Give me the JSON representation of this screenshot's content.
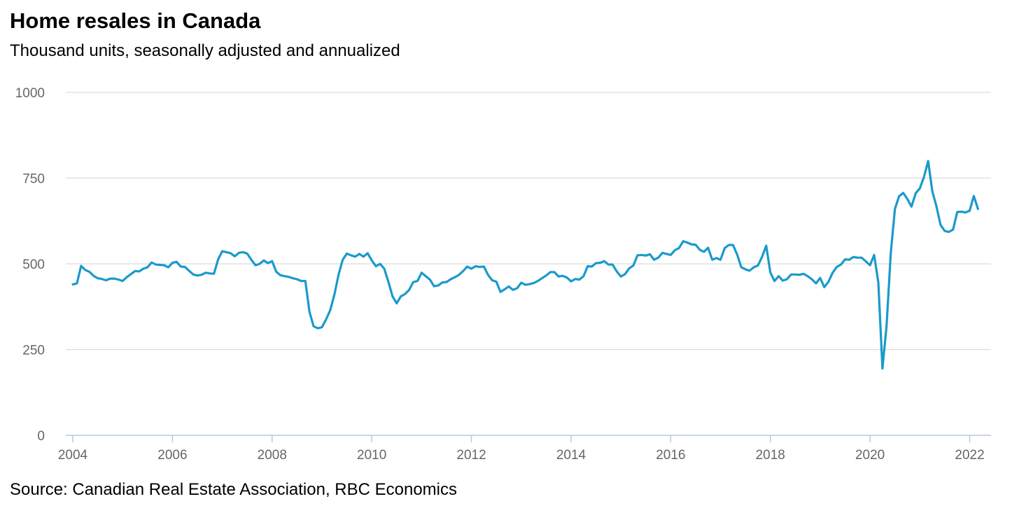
{
  "chart_data": {
    "type": "line",
    "title": "Home resales in Canada",
    "subtitle": "Thousand units, seasonally adjusted and annualized",
    "source": "Source: Canadian Real Estate Association, RBC Economics",
    "xlabel": "",
    "ylabel": "",
    "xlim": [
      2004,
      2022.4
    ],
    "ylim": [
      0,
      1000
    ],
    "y_ticks": [
      0,
      250,
      500,
      750,
      1000
    ],
    "x_ticks": [
      2004,
      2006,
      2008,
      2010,
      2012,
      2014,
      2016,
      2018,
      2020,
      2022
    ],
    "grid": true,
    "legend": "none",
    "line_color": "#1a9acb",
    "series": [
      {
        "x": [
          2004.0,
          2004.083,
          2004.167,
          2004.25,
          2004.333,
          2004.417,
          2004.5,
          2004.583,
          2004.667,
          2004.75,
          2004.833,
          2004.917,
          2005.0,
          2005.083,
          2005.167,
          2005.25,
          2005.333,
          2005.417,
          2005.5,
          2005.583,
          2005.667,
          2005.75,
          2005.833,
          2005.917,
          2006.0,
          2006.083,
          2006.167,
          2006.25,
          2006.333,
          2006.417,
          2006.5,
          2006.583,
          2006.667,
          2006.75,
          2006.833,
          2006.917,
          2007.0,
          2007.083,
          2007.167,
          2007.25,
          2007.333,
          2007.417,
          2007.5,
          2007.583,
          2007.667,
          2007.75,
          2007.833,
          2007.917,
          2008.0,
          2008.083,
          2008.167,
          2008.25,
          2008.333,
          2008.417,
          2008.5,
          2008.583,
          2008.667,
          2008.75,
          2008.833,
          2008.917,
          2009.0,
          2009.083,
          2009.167,
          2009.25,
          2009.333,
          2009.417,
          2009.5,
          2009.583,
          2009.667,
          2009.75,
          2009.833,
          2009.917,
          2010.0,
          2010.083,
          2010.167,
          2010.25,
          2010.333,
          2010.417,
          2010.5,
          2010.583,
          2010.667,
          2010.75,
          2010.833,
          2010.917,
          2011.0,
          2011.083,
          2011.167,
          2011.25,
          2011.333,
          2011.417,
          2011.5,
          2011.583,
          2011.667,
          2011.75,
          2011.833,
          2011.917,
          2012.0,
          2012.083,
          2012.167,
          2012.25,
          2012.333,
          2012.417,
          2012.5,
          2012.583,
          2012.667,
          2012.75,
          2012.833,
          2012.917,
          2013.0,
          2013.083,
          2013.167,
          2013.25,
          2013.333,
          2013.417,
          2013.5,
          2013.583,
          2013.667,
          2013.75,
          2013.833,
          2013.917,
          2014.0,
          2014.083,
          2014.167,
          2014.25,
          2014.333,
          2014.417,
          2014.5,
          2014.583,
          2014.667,
          2014.75,
          2014.833,
          2014.917,
          2015.0,
          2015.083,
          2015.167,
          2015.25,
          2015.333,
          2015.417,
          2015.5,
          2015.583,
          2015.667,
          2015.75,
          2015.833,
          2015.917,
          2016.0,
          2016.083,
          2016.167,
          2016.25,
          2016.333,
          2016.417,
          2016.5,
          2016.583,
          2016.667,
          2016.75,
          2016.833,
          2016.917,
          2017.0,
          2017.083,
          2017.167,
          2017.25,
          2017.333,
          2017.417,
          2017.5,
          2017.583,
          2017.667,
          2017.75,
          2017.833,
          2017.917,
          2018.0,
          2018.083,
          2018.167,
          2018.25,
          2018.333,
          2018.417,
          2018.5,
          2018.583,
          2018.667,
          2018.75,
          2018.833,
          2018.917,
          2019.0,
          2019.083,
          2019.167,
          2019.25,
          2019.333,
          2019.417,
          2019.5,
          2019.583,
          2019.667,
          2019.75,
          2019.833,
          2019.917,
          2020.0,
          2020.083,
          2020.167,
          2020.25,
          2020.333,
          2020.417,
          2020.5,
          2020.583,
          2020.667,
          2020.75,
          2020.833,
          2020.917,
          2021.0,
          2021.083,
          2021.167,
          2021.25,
          2021.333,
          2021.417,
          2021.5,
          2021.583,
          2021.667,
          2021.75,
          2021.833,
          2021.917,
          2022.0,
          2022.083,
          2022.167
        ],
        "y": [
          440,
          443,
          494,
          482,
          477,
          465,
          458,
          456,
          452,
          457,
          457,
          454,
          450,
          461,
          470,
          479,
          478,
          486,
          490,
          504,
          498,
          497,
          496,
          490,
          503,
          506,
          492,
          491,
          480,
          469,
          466,
          468,
          474,
          472,
          471,
          513,
          537,
          534,
          531,
          522,
          532,
          534,
          530,
          512,
          496,
          500,
          510,
          502,
          508,
          477,
          467,
          464,
          462,
          458,
          455,
          450,
          450,
          360,
          318,
          312,
          315,
          338,
          365,
          410,
          468,
          512,
          530,
          525,
          521,
          529,
          521,
          531,
          510,
          493,
          500,
          486,
          448,
          405,
          385,
          405,
          412,
          424,
          447,
          450,
          474,
          464,
          454,
          435,
          437,
          446,
          447,
          455,
          461,
          468,
          479,
          492,
          486,
          493,
          491,
          492,
          468,
          452,
          448,
          418,
          426,
          434,
          424,
          429,
          445,
          439,
          441,
          444,
          450,
          458,
          466,
          476,
          476,
          463,
          465,
          460,
          449,
          456,
          454,
          464,
          493,
          492,
          502,
          503,
          508,
          498,
          498,
          478,
          463,
          470,
          487,
          495,
          525,
          526,
          524,
          528,
          512,
          518,
          532,
          529,
          526,
          540,
          546,
          566,
          562,
          557,
          556,
          541,
          535,
          547,
          512,
          517,
          512,
          546,
          555,
          555,
          527,
          490,
          484,
          480,
          490,
          495,
          520,
          553,
          475,
          450,
          464,
          451,
          455,
          469,
          469,
          468,
          471,
          464,
          455,
          443,
          459,
          432,
          448,
          474,
          491,
          498,
          513,
          512,
          520,
          518,
          518,
          507,
          496,
          526,
          446,
          195,
          320,
          532,
          660,
          697,
          707,
          689,
          667,
          706,
          720,
          753,
          800,
          712,
          668,
          613,
          596,
          593,
          600,
          651,
          652,
          650,
          655,
          698,
          660
        ]
      }
    ]
  }
}
